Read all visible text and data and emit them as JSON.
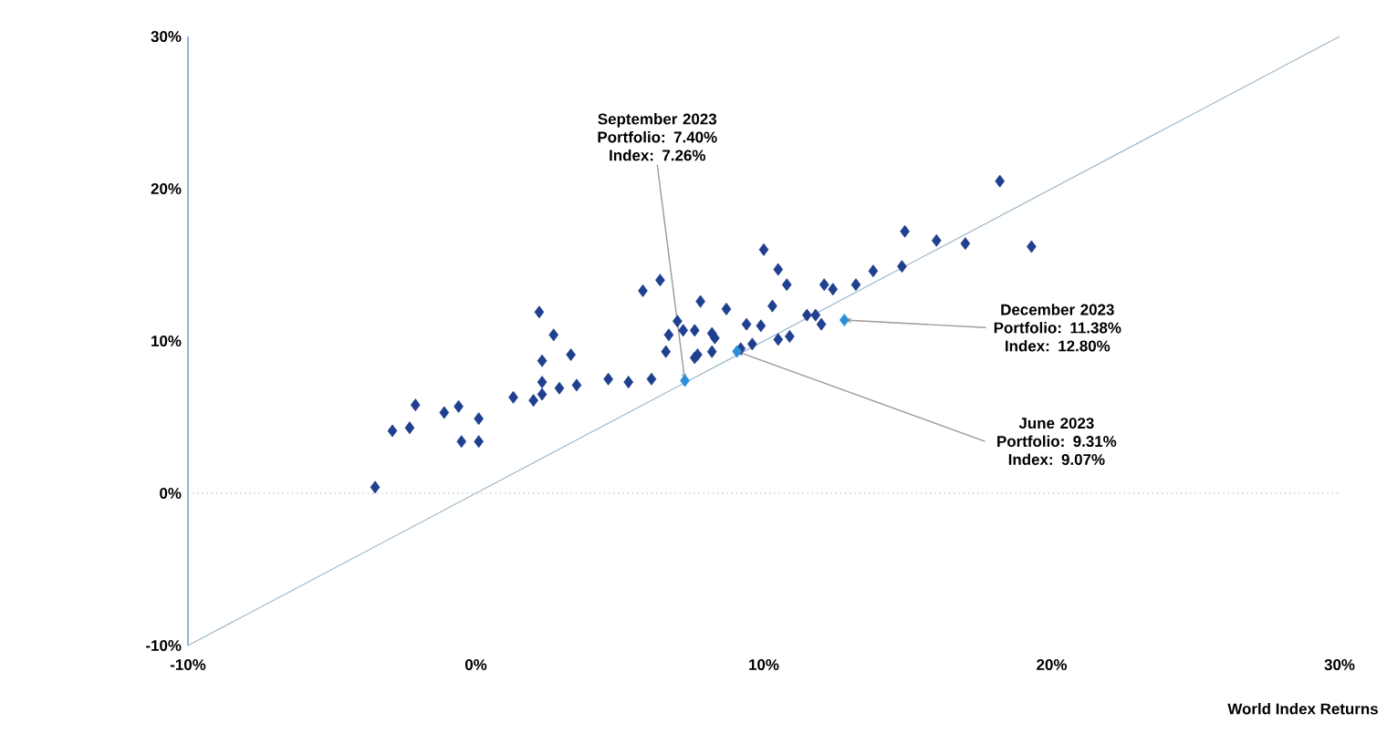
{
  "chart_data": {
    "type": "scatter",
    "xlabel": "World Index Returns",
    "marker": "diamond",
    "grid": false,
    "xlim": [
      -10,
      30
    ],
    "ylim": [
      -10,
      30
    ],
    "xticks": [
      {
        "value": -10,
        "label": "-10%"
      },
      {
        "value": 0,
        "label": "0%"
      },
      {
        "value": 10,
        "label": "10%"
      },
      {
        "value": 20,
        "label": "20%"
      },
      {
        "value": 30,
        "label": "30%"
      }
    ],
    "yticks": [
      {
        "value": -10,
        "label": "-10%"
      },
      {
        "value": 0,
        "label": "0%"
      },
      {
        "value": 10,
        "label": "10%"
      },
      {
        "value": 20,
        "label": "20%"
      },
      {
        "value": 30,
        "label": "30%"
      }
    ],
    "ref_lines": [
      {
        "axis": "y",
        "value": 0,
        "color": "#a0a0a0",
        "line_style": "dotted"
      }
    ],
    "series": [
      {
        "type": "line",
        "marker": "none",
        "color": "#9ab8cc",
        "x": [
          -10,
          30
        ],
        "values": [
          -10,
          30
        ]
      },
      {
        "color": "#1f3f8f",
        "x": [
          -3.5,
          -2.9,
          -2.3,
          -2.1,
          -1.1,
          -0.6,
          -0.5,
          0.1,
          0.1,
          1.3,
          2.0,
          2.3,
          2.2,
          2.7,
          2.3,
          3.3,
          2.3,
          2.9,
          3.5,
          4.6,
          5.3,
          5.8,
          6.4,
          6.1,
          6.7,
          7.0,
          6.6,
          7.2,
          7.6,
          7.8,
          7.6,
          8.2,
          8.3,
          8.7,
          18.2,
          19.3,
          14.9,
          16.0,
          17.0,
          14.8,
          13.8,
          13.2,
          12.4,
          12.1,
          10.0,
          10.5,
          10.8,
          10.3,
          9.4,
          9.9,
          11.5,
          11.8,
          12.0,
          10.9,
          10.5,
          9.6,
          8.4,
          8.2,
          7.7,
          9.2
        ],
        "values": [
          0.4,
          4.1,
          4.3,
          5.8,
          5.3,
          5.7,
          3.4,
          3.4,
          4.9,
          6.3,
          6.1,
          6.5,
          11.9,
          10.4,
          8.7,
          9.1,
          7.3,
          6.9,
          7.1,
          7.5,
          7.3,
          13.3,
          14.0,
          7.5,
          10.4,
          11.3,
          9.3,
          10.7,
          10.7,
          12.6,
          8.9,
          9.3,
          10.2,
          12.1,
          20.5,
          16.2,
          17.2,
          16.6,
          16.4,
          14.9,
          14.6,
          13.7,
          13.4,
          13.7,
          16.0,
          14.7,
          13.7,
          12.3,
          11.1,
          11.0,
          11.7,
          11.7,
          11.1,
          10.3,
          10.1,
          9.8,
          null,
          10.5,
          9.1,
          9.5
        ]
      },
      {
        "color": "#2a8fd8",
        "x": [
          7.26,
          9.07,
          12.8
        ],
        "values": [
          7.4,
          9.31,
          11.38
        ]
      }
    ],
    "annotations": [
      {
        "text": "September 2023 Portfolio: 7.40% Index: 7.26%",
        "x": 7.26,
        "y": 7.4
      },
      {
        "text": "December 2023 Portfolio: 11.38% Index: 12.80%",
        "x": 12.8,
        "y": 11.38
      },
      {
        "text": "June 2023 Portfolio: 9.31% Index: 9.07%",
        "x": 9.07,
        "y": 9.31
      }
    ]
  }
}
